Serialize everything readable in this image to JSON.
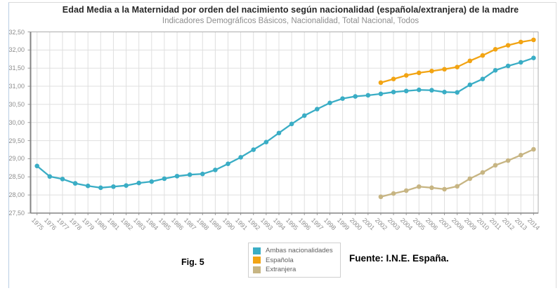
{
  "figure": {
    "title": "Edad Media a la Maternidad por orden del nacimiento según nacionalidad (española/extranjera) de la madre",
    "subtitle": "Indicadores Demográficos Básicos, Nacionalidad, Total Nacional, Todos",
    "fig_label": "Fig. 5",
    "source": "Fuente: I.N.E. España."
  },
  "colors": {
    "ambas": "#3aadc5",
    "espanola": "#f2a413",
    "extranjera": "#c7b583",
    "grid": "#dfdfdf",
    "frame": "#adadad",
    "axis_line": "#848484",
    "tick": "#9b9b9b",
    "axis_text": "#8e8e8e"
  },
  "chart_data": {
    "type": "line",
    "title": "Edad Media a la Maternidad por orden del nacimiento según nacionalidad (española/extranjera) de la madre",
    "subtitle": "Indicadores Demográficos Básicos, Nacionalidad, Total Nacional, Todos",
    "x": [
      1975,
      1976,
      1977,
      1978,
      1979,
      1980,
      1981,
      1982,
      1983,
      1984,
      1985,
      1986,
      1987,
      1988,
      1989,
      1990,
      1991,
      1992,
      1993,
      1994,
      1995,
      1996,
      1997,
      1998,
      1999,
      2000,
      2001,
      2002,
      2003,
      2004,
      2005,
      2006,
      2007,
      2008,
      2009,
      2010,
      2011,
      2012,
      2013,
      2014
    ],
    "y_ticks": [
      "27,50",
      "28,00",
      "28,50",
      "29,00",
      "29,50",
      "30,00",
      "30,50",
      "31,00",
      "31,50",
      "32,00",
      "32,50"
    ],
    "ylim": [
      27.5,
      32.5
    ],
    "y_step": 0.5,
    "grid": true,
    "legend_position": "bottom",
    "series": [
      {
        "name": "Ambas nacionalidades",
        "color": "#3aadc5",
        "start_year": 1975,
        "values": [
          28.8,
          28.51,
          28.44,
          28.32,
          28.25,
          28.2,
          28.23,
          28.26,
          28.33,
          28.37,
          28.45,
          28.52,
          28.56,
          28.58,
          28.69,
          28.86,
          29.04,
          29.25,
          29.46,
          29.71,
          29.96,
          30.19,
          30.37,
          30.54,
          30.66,
          30.72,
          30.75,
          30.79,
          30.84,
          30.87,
          30.9,
          30.89,
          30.84,
          30.83,
          31.04,
          31.2,
          31.44,
          31.56,
          31.66,
          31.78
        ]
      },
      {
        "name": "Española",
        "color": "#f2a413",
        "start_year": 2002,
        "values": [
          31.1,
          31.2,
          31.3,
          31.37,
          31.42,
          31.47,
          31.53,
          31.7,
          31.85,
          32.02,
          32.13,
          32.22,
          32.28
        ]
      },
      {
        "name": "Extranjera",
        "color": "#c7b583",
        "start_year": 2002,
        "values": [
          27.95,
          28.04,
          28.12,
          28.23,
          28.2,
          28.16,
          28.24,
          28.45,
          28.62,
          28.82,
          28.95,
          29.1,
          29.26
        ]
      }
    ]
  }
}
